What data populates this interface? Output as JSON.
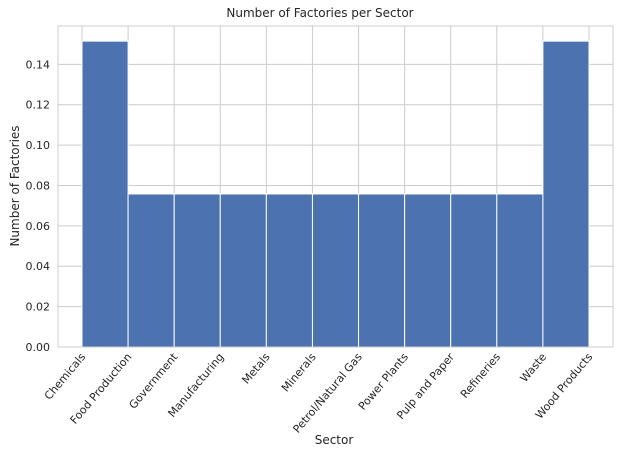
{
  "chart_data": {
    "type": "bar",
    "title": "Number of Factories per Sector",
    "xlabel": "Sector",
    "ylabel": "Number of Factories",
    "categories": [
      "Chemicals",
      "Food Production",
      "Government",
      "Manufacturing",
      "Metals",
      "Minerals",
      "Petrol/Natural Gas",
      "Power Plants",
      "Pulp and Paper",
      "Refineries",
      "Waste",
      "Wood Products"
    ],
    "bins": [
      {
        "from": "Chemicals",
        "to": "Food Production",
        "value": 0.1515
      },
      {
        "from": "Food Production",
        "to": "Government",
        "value": 0.0758
      },
      {
        "from": "Government",
        "to": "Manufacturing",
        "value": 0.0758
      },
      {
        "from": "Manufacturing",
        "to": "Metals",
        "value": 0.0758
      },
      {
        "from": "Metals",
        "to": "Minerals",
        "value": 0.0758
      },
      {
        "from": "Minerals",
        "to": "Petrol/Natural Gas",
        "value": 0.0758
      },
      {
        "from": "Petrol/Natural Gas",
        "to": "Power Plants",
        "value": 0.0758
      },
      {
        "from": "Power Plants",
        "to": "Pulp and Paper",
        "value": 0.0758
      },
      {
        "from": "Pulp and Paper",
        "to": "Refineries",
        "value": 0.0758
      },
      {
        "from": "Refineries",
        "to": "Waste",
        "value": 0.0758
      },
      {
        "from": "Waste",
        "to": "Wood Products",
        "value": 0.1515
      }
    ],
    "yticks": [
      "0.00",
      "0.02",
      "0.04",
      "0.06",
      "0.08",
      "0.10",
      "0.12",
      "0.14"
    ],
    "ylim": [
      0,
      0.159
    ],
    "grid": true,
    "colors": {
      "bar": "#4c72b0",
      "grid": "#cccccc",
      "text": "#262626"
    }
  }
}
